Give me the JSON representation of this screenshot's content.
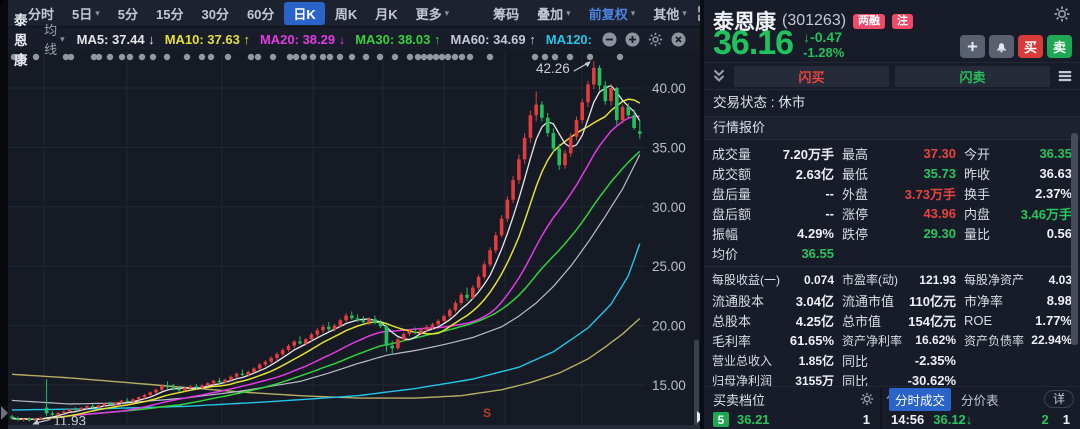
{
  "toolbar": {
    "items": [
      {
        "label": "分时"
      },
      {
        "label": "5日",
        "caret": true
      },
      {
        "label": "5分"
      },
      {
        "label": "15分"
      },
      {
        "label": "30分"
      },
      {
        "label": "60分"
      },
      {
        "label": "日K",
        "active": true
      },
      {
        "label": "周K"
      },
      {
        "label": "月K"
      },
      {
        "label": "更多",
        "caret": true
      },
      {
        "label": "筹码",
        "gap": true
      },
      {
        "label": "叠加",
        "caret": true
      },
      {
        "label": "前复权",
        "caret": true,
        "accent": true
      },
      {
        "label": "其他",
        "caret": true
      }
    ],
    "icons": [
      "layout-grid-icon",
      "draw-brush-icon",
      "fullscreen-icon"
    ]
  },
  "legend": {
    "stock": "泰恩康",
    "ma_menu": "均线",
    "mas": [
      {
        "text": "MA5: 37.44",
        "arrow": "↓",
        "color": "#e2e5ea"
      },
      {
        "text": "MA10: 37.63",
        "arrow": "↑",
        "color": "#e4e135"
      },
      {
        "text": "MA20: 38.29",
        "arrow": "↓",
        "color": "#e23ae2"
      },
      {
        "text": "MA30: 38.03",
        "arrow": "↑",
        "color": "#33d23c"
      },
      {
        "text": "MA60: 34.69",
        "arrow": "↑",
        "color": "#c3c8d2"
      },
      {
        "text": "MA120:",
        "arrow": "",
        "color": "#23c6e8"
      }
    ],
    "icons": [
      "zoom-out-icon",
      "zoom-in-icon",
      "settings-icon",
      "close-icon"
    ]
  },
  "chart_data": {
    "type": "candlestick",
    "title": "泰恩康 日K",
    "ylim": [
      11.5,
      43.5
    ],
    "y_ticks": [
      40,
      35,
      30,
      25,
      20,
      15
    ],
    "y_tick_labels": [
      "40.00",
      "35.00",
      "30.00",
      "25.00",
      "20.00",
      "15.00"
    ],
    "annotations": {
      "peak": "42.26",
      "trough": "11.93",
      "sell_marker": "S"
    },
    "up_color": "#e23c3e",
    "down_color": "#22c05e",
    "ma_colors": {
      "ma5": "#e8e8e8",
      "ma10": "#e4e135",
      "ma20": "#e23ae2",
      "ma30": "#33d23c",
      "ma60": "#b8bdc9",
      "ma120": "#23c6e8",
      "ma250": "#b7ae66"
    },
    "vgrid_x": [
      44,
      127,
      222,
      313,
      383,
      444,
      505,
      582
    ],
    "event_dots_x": [
      14,
      21,
      36,
      66,
      71,
      94,
      99,
      110,
      122,
      130,
      142,
      153,
      167,
      187,
      202,
      211,
      228,
      251,
      258,
      273,
      290,
      296,
      304,
      313,
      323,
      330,
      340,
      352,
      366,
      380,
      395,
      410,
      418,
      424,
      430,
      436,
      442,
      448,
      455,
      462,
      470,
      490,
      535,
      545,
      555,
      570,
      590,
      620
    ],
    "ohlc": [
      [
        12.35,
        12.5,
        12.1,
        12.2
      ],
      [
        12.2,
        12.35,
        11.98,
        12.08
      ],
      [
        12.08,
        12.2,
        11.95,
        12.15
      ],
      [
        12.15,
        12.28,
        11.93,
        12.02
      ],
      [
        12.02,
        12.18,
        11.96,
        12.12
      ],
      [
        12.12,
        12.3,
        12.05,
        12.25
      ],
      [
        13.1,
        15.48,
        12.4,
        12.62
      ],
      [
        12.62,
        12.8,
        12.35,
        12.5
      ],
      [
        12.5,
        12.72,
        12.42,
        12.65
      ],
      [
        12.65,
        12.85,
        12.55,
        12.78
      ],
      [
        12.78,
        13.05,
        12.7,
        12.98
      ],
      [
        12.98,
        13.12,
        12.8,
        12.9
      ],
      [
        12.9,
        13.15,
        12.85,
        13.08
      ],
      [
        13.08,
        13.3,
        12.98,
        13.22
      ],
      [
        13.22,
        13.38,
        13.05,
        13.12
      ],
      [
        13.12,
        13.35,
        13.02,
        13.28
      ],
      [
        13.28,
        13.52,
        13.18,
        13.45
      ],
      [
        13.45,
        13.6,
        13.25,
        13.35
      ],
      [
        13.35,
        13.58,
        13.26,
        13.5
      ],
      [
        13.5,
        13.75,
        13.4,
        13.68
      ],
      [
        13.68,
        13.9,
        13.55,
        13.6
      ],
      [
        13.6,
        13.88,
        13.52,
        13.8
      ],
      [
        13.8,
        14.05,
        13.7,
        13.98
      ],
      [
        13.98,
        14.25,
        13.85,
        14.15
      ],
      [
        14.15,
        14.45,
        14.0,
        14.38
      ],
      [
        14.38,
        14.7,
        14.25,
        14.6
      ],
      [
        14.6,
        15.05,
        14.5,
        14.95
      ],
      [
        14.95,
        15.3,
        14.7,
        14.8
      ],
      [
        14.8,
        15.1,
        14.55,
        14.68
      ],
      [
        14.68,
        14.9,
        14.42,
        14.55
      ],
      [
        14.55,
        14.85,
        14.45,
        14.75
      ],
      [
        14.75,
        15.0,
        14.6,
        14.88
      ],
      [
        14.88,
        15.1,
        14.65,
        14.78
      ],
      [
        14.78,
        15.05,
        14.68,
        14.96
      ],
      [
        14.96,
        15.25,
        14.85,
        15.15
      ],
      [
        15.15,
        15.45,
        15.0,
        15.35
      ],
      [
        15.35,
        15.6,
        15.1,
        15.22
      ],
      [
        15.22,
        15.55,
        15.12,
        15.45
      ],
      [
        15.45,
        15.8,
        15.35,
        15.7
      ],
      [
        15.7,
        16.05,
        15.55,
        15.95
      ],
      [
        15.95,
        16.3,
        15.75,
        15.85
      ],
      [
        15.85,
        16.2,
        15.7,
        16.1
      ],
      [
        16.1,
        16.5,
        16.0,
        16.4
      ],
      [
        16.4,
        16.85,
        16.25,
        16.72
      ],
      [
        16.72,
        17.1,
        16.55,
        16.95
      ],
      [
        16.95,
        17.4,
        16.8,
        17.28
      ],
      [
        17.28,
        17.75,
        17.1,
        17.6
      ],
      [
        17.6,
        18.1,
        17.45,
        17.95
      ],
      [
        17.95,
        18.45,
        17.8,
        18.3
      ],
      [
        18.3,
        18.8,
        18.1,
        18.65
      ],
      [
        18.65,
        19.1,
        18.4,
        18.5
      ],
      [
        18.5,
        18.95,
        18.3,
        18.85
      ],
      [
        18.85,
        19.4,
        18.7,
        19.25
      ],
      [
        19.25,
        19.8,
        19.05,
        19.6
      ],
      [
        19.6,
        20.1,
        19.35,
        19.9
      ],
      [
        19.9,
        20.3,
        19.55,
        19.7
      ],
      [
        19.7,
        20.15,
        19.5,
        20.0
      ],
      [
        20.0,
        20.6,
        19.85,
        20.45
      ],
      [
        20.45,
        21.05,
        20.3,
        20.85
      ],
      [
        20.85,
        21.2,
        20.5,
        20.62
      ],
      [
        20.62,
        20.95,
        20.3,
        20.45
      ],
      [
        20.45,
        20.8,
        20.15,
        20.3
      ],
      [
        20.3,
        20.7,
        20.05,
        20.55
      ],
      [
        20.55,
        20.85,
        20.1,
        20.22
      ],
      [
        20.22,
        20.5,
        19.8,
        19.95
      ],
      [
        19.95,
        20.1,
        17.8,
        18.3
      ],
      [
        18.3,
        18.75,
        17.55,
        18.1
      ],
      [
        18.1,
        19.0,
        17.95,
        18.85
      ],
      [
        18.85,
        19.45,
        18.7,
        19.3
      ],
      [
        19.3,
        19.7,
        19.1,
        19.5
      ],
      [
        19.5,
        19.85,
        19.25,
        19.4
      ],
      [
        19.4,
        19.8,
        19.2,
        19.65
      ],
      [
        19.65,
        20.05,
        19.45,
        19.9
      ],
      [
        19.9,
        20.25,
        19.7,
        20.1
      ],
      [
        20.1,
        20.55,
        19.95,
        20.4
      ],
      [
        20.4,
        20.95,
        20.25,
        20.8
      ],
      [
        20.8,
        21.45,
        20.6,
        21.3
      ],
      [
        21.3,
        22.1,
        21.1,
        21.9
      ],
      [
        21.9,
        22.8,
        21.7,
        22.6
      ],
      [
        22.6,
        23.2,
        22.1,
        22.35
      ],
      [
        22.35,
        23.4,
        22.2,
        23.2
      ],
      [
        23.2,
        24.3,
        23.0,
        24.1
      ],
      [
        24.1,
        25.4,
        23.9,
        25.15
      ],
      [
        25.15,
        26.6,
        24.95,
        26.35
      ],
      [
        26.35,
        27.9,
        26.1,
        27.6
      ],
      [
        27.6,
        29.3,
        27.4,
        29.0
      ],
      [
        29.0,
        30.9,
        28.7,
        30.6
      ],
      [
        30.6,
        32.6,
        30.3,
        32.25
      ],
      [
        32.25,
        34.4,
        31.9,
        34.0
      ],
      [
        34.0,
        36.2,
        33.6,
        35.8
      ],
      [
        35.8,
        38.1,
        35.4,
        37.7
      ],
      [
        37.7,
        39.7,
        37.2,
        38.6
      ],
      [
        38.6,
        38.9,
        37.2,
        37.5
      ],
      [
        37.5,
        37.9,
        35.9,
        36.2
      ],
      [
        36.2,
        36.6,
        34.6,
        34.9
      ],
      [
        34.9,
        35.3,
        33.1,
        33.5
      ],
      [
        33.5,
        34.8,
        33.2,
        34.5
      ],
      [
        34.5,
        36.2,
        34.2,
        35.9
      ],
      [
        35.9,
        37.6,
        35.6,
        37.3
      ],
      [
        37.3,
        39.1,
        37.0,
        38.8
      ],
      [
        38.8,
        40.6,
        38.4,
        40.3
      ],
      [
        40.3,
        42.26,
        39.9,
        41.7
      ],
      [
        41.7,
        41.9,
        39.8,
        40.2
      ],
      [
        40.2,
        40.6,
        38.6,
        38.9
      ],
      [
        38.9,
        40.3,
        38.5,
        40.0
      ],
      [
        40.0,
        40.1,
        36.9,
        37.3
      ],
      [
        37.3,
        38.6,
        37.0,
        38.4
      ],
      [
        38.4,
        38.7,
        37.5,
        37.7
      ],
      [
        37.7,
        38.2,
        36.5,
        36.63
      ],
      [
        36.35,
        37.3,
        35.73,
        36.16
      ]
    ],
    "ma60_points": [
      [
        0,
        13.7
      ],
      [
        10,
        13.4
      ],
      [
        20,
        13.5
      ],
      [
        30,
        13.9
      ],
      [
        40,
        14.5
      ],
      [
        50,
        15.3
      ],
      [
        55,
        16.0
      ],
      [
        60,
        16.8
      ],
      [
        65,
        17.5
      ],
      [
        70,
        17.9
      ],
      [
        75,
        18.4
      ],
      [
        80,
        19.0
      ],
      [
        85,
        19.9
      ],
      [
        88,
        20.8
      ],
      [
        91,
        21.9
      ],
      [
        94,
        23.3
      ],
      [
        97,
        25.0
      ],
      [
        100,
        27.0
      ],
      [
        103,
        29.2
      ],
      [
        106,
        31.5
      ],
      [
        109,
        34.4
      ]
    ],
    "ma120_points": [
      [
        0,
        12.9
      ],
      [
        15,
        13.0
      ],
      [
        30,
        13.2
      ],
      [
        45,
        13.6
      ],
      [
        60,
        14.1
      ],
      [
        70,
        14.7
      ],
      [
        80,
        15.5
      ],
      [
        88,
        16.5
      ],
      [
        94,
        17.8
      ],
      [
        100,
        19.8
      ],
      [
        104,
        21.8
      ],
      [
        107,
        24.2
      ],
      [
        109,
        26.9
      ]
    ],
    "ma250_points": [
      [
        0,
        15.9
      ],
      [
        10,
        15.6
      ],
      [
        20,
        15.2
      ],
      [
        30,
        14.8
      ],
      [
        40,
        14.4
      ],
      [
        50,
        14.1
      ],
      [
        60,
        13.9
      ],
      [
        70,
        13.9
      ],
      [
        78,
        14.1
      ],
      [
        85,
        14.6
      ],
      [
        90,
        15.2
      ],
      [
        95,
        16.0
      ],
      [
        100,
        17.2
      ],
      [
        103,
        18.2
      ],
      [
        106,
        19.3
      ],
      [
        109,
        20.6
      ]
    ]
  },
  "panel": {
    "title": {
      "name": "泰恩康",
      "code": "(301263)",
      "badges": [
        "两融",
        "注"
      ]
    },
    "price": {
      "last": "36.16",
      "change": "-0.47",
      "change_arrow": "↓",
      "pct": "-1.28%"
    },
    "actions": {
      "buy": "买",
      "sell": "卖"
    },
    "quick": {
      "flash_buy": "闪买",
      "flash_sell": "闪卖"
    },
    "status": "交易状态 : 休市",
    "section_title": "行情报价",
    "grid_rows": [
      {
        "cells": [
          {
            "l": "成交量",
            "v": "7.20万手",
            "c": "w"
          },
          {
            "l": "最高",
            "v": "37.30",
            "c": "r"
          },
          {
            "l": "今开",
            "v": "36.35",
            "c": "g"
          }
        ]
      },
      {
        "cells": [
          {
            "l": "成交额",
            "v": "2.63亿",
            "c": "w"
          },
          {
            "l": "最低",
            "v": "35.73",
            "c": "g"
          },
          {
            "l": "昨收",
            "v": "36.63",
            "c": "w"
          }
        ]
      },
      {
        "cells": [
          {
            "l": "盘后量",
            "v": "--",
            "c": "w"
          },
          {
            "l": "外盘",
            "v": "3.73万手",
            "c": "r"
          },
          {
            "l": "换手",
            "v": "2.37%",
            "c": "w"
          }
        ]
      },
      {
        "cells": [
          {
            "l": "盘后额",
            "v": "--",
            "c": "w"
          },
          {
            "l": "涨停",
            "v": "43.96",
            "c": "r"
          },
          {
            "l": "内盘",
            "v": "3.46万手",
            "c": "g"
          }
        ]
      },
      {
        "cells": [
          {
            "l": "振幅",
            "v": "4.29%",
            "c": "w"
          },
          {
            "l": "跌停",
            "v": "29.30",
            "c": "g"
          },
          {
            "l": "量比",
            "v": "0.56",
            "c": "w"
          }
        ]
      },
      {
        "cells": [
          {
            "l": "均价",
            "v": "36.55",
            "c": "g"
          }
        ]
      },
      {
        "sep": true,
        "cells": [
          {
            "l": "每股收益(一)",
            "v": "0.074",
            "c": "w"
          },
          {
            "l": "市盈率(动)",
            "v": "121.93",
            "c": "w"
          },
          {
            "l": "每股净资产",
            "v": "4.03",
            "c": "w"
          }
        ]
      },
      {
        "cells": [
          {
            "l": "流通股本",
            "v": "3.04亿",
            "c": "w"
          },
          {
            "l": "流通市值",
            "v": "110亿元",
            "c": "w"
          },
          {
            "l": "市净率",
            "v": "8.98",
            "c": "w"
          }
        ]
      },
      {
        "cells": [
          {
            "l": "总股本",
            "v": "4.25亿",
            "c": "w"
          },
          {
            "l": "总市值",
            "v": "154亿元",
            "c": "w"
          },
          {
            "l": "ROE",
            "v": "1.77%",
            "c": "w"
          }
        ]
      },
      {
        "cells": [
          {
            "l": "毛利率",
            "v": "61.65%",
            "c": "w"
          },
          {
            "l": "资产净利率",
            "v": "16.62%",
            "c": "w"
          },
          {
            "l": "资产负债率",
            "v": "22.94%",
            "c": "w"
          }
        ]
      },
      {
        "cells": [
          {
            "l": "营业总收入",
            "v": "1.85亿",
            "c": "w"
          },
          {
            "l": "同比",
            "v": "-2.35%",
            "c": "w"
          }
        ]
      },
      {
        "cells": [
          {
            "l": "归母净利润",
            "v": "3155万",
            "c": "w"
          },
          {
            "l": "同比",
            "v": "-30.62%",
            "c": "w"
          }
        ]
      }
    ],
    "depth": {
      "title": "买卖档位",
      "level": "5",
      "price": "36.21",
      "qty": "1"
    },
    "ticks": {
      "tab_active": "分时成交",
      "tab_other": "分价表",
      "detail": "详",
      "time": "14:56",
      "price": "36.12",
      "arrow": "↓",
      "vol": "2",
      "count": "1"
    }
  }
}
